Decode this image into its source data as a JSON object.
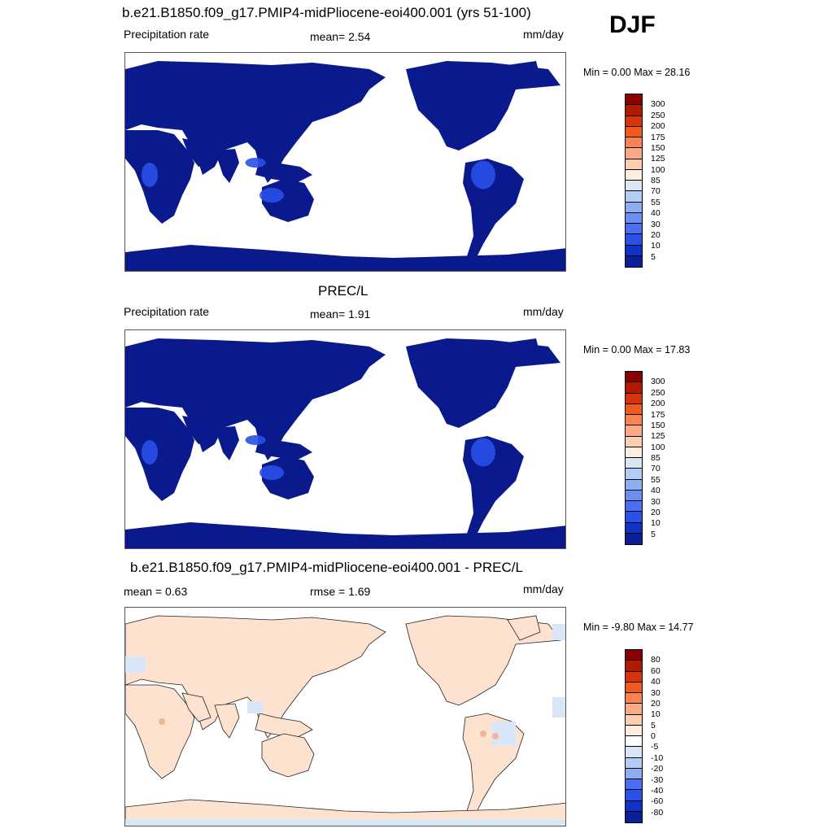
{
  "season": "DJF",
  "panels": [
    {
      "title": "b.e21.B1850.f09_g17.PMIP4-midPliocene-eoi400.001 (yrs 51-100)",
      "left_label": "Precipitation rate",
      "center_label": "mean=   2.54",
      "units": "mm/day",
      "minmax": "Min =    0.00 Max =  28.16",
      "colorbar": {
        "labels": [
          "300",
          "250",
          "200",
          "175",
          "150",
          "125",
          "100",
          "85",
          "70",
          "55",
          "40",
          "30",
          "20",
          "10",
          "5"
        ],
        "colors": [
          "#8b0000",
          "#b11a00",
          "#d8330a",
          "#f25a1d",
          "#f98352",
          "#fca985",
          "#fdcdb2",
          "#fdeee0",
          "#d8e6f8",
          "#b3cdf4",
          "#8daef0",
          "#6c8ef0",
          "#4a6ff0",
          "#2950e8",
          "#0f33c8",
          "#0a1f96"
        ]
      },
      "land_color": "#0a1a8c"
    },
    {
      "title": "PREC/L",
      "left_label": "Precipitation rate",
      "center_label": "mean=   1.91",
      "units": "mm/day",
      "minmax": "Min =    0.00 Max =  17.83",
      "colorbar": {
        "labels": [
          "300",
          "250",
          "200",
          "175",
          "150",
          "125",
          "100",
          "85",
          "70",
          "55",
          "40",
          "30",
          "20",
          "10",
          "5"
        ],
        "colors": [
          "#8b0000",
          "#b11a00",
          "#d8330a",
          "#f25a1d",
          "#f98352",
          "#fca985",
          "#fdcdb2",
          "#fdeee0",
          "#d8e6f8",
          "#b3cdf4",
          "#8daef0",
          "#6c8ef0",
          "#4a6ff0",
          "#2950e8",
          "#0f33c8",
          "#0a1f96"
        ]
      },
      "land_color": "#0a1a8c"
    },
    {
      "title": "b.e21.B1850.f09_g17.PMIP4-midPliocene-eoi400.001 - PREC/L",
      "left_label": "mean =    0.63",
      "center_label": "rmse =    1.69",
      "units": "mm/day",
      "minmax": "Min =  -9.80 Max =  14.77",
      "colorbar": {
        "labels": [
          "80",
          "60",
          "40",
          "30",
          "20",
          "10",
          "5",
          "0",
          "-5",
          "-10",
          "-20",
          "-30",
          "-40",
          "-60",
          "-80"
        ],
        "colors": [
          "#8b0000",
          "#b11a00",
          "#d8330a",
          "#f25a1d",
          "#f98352",
          "#fca985",
          "#fdcdb2",
          "#fdeee0",
          "#ffffff",
          "#d8e6f8",
          "#b3cdf4",
          "#8daef0",
          "#4a6ff0",
          "#2950e8",
          "#0f33c8",
          "#0a1f96"
        ]
      },
      "land_color": "#fde3cf"
    }
  ]
}
